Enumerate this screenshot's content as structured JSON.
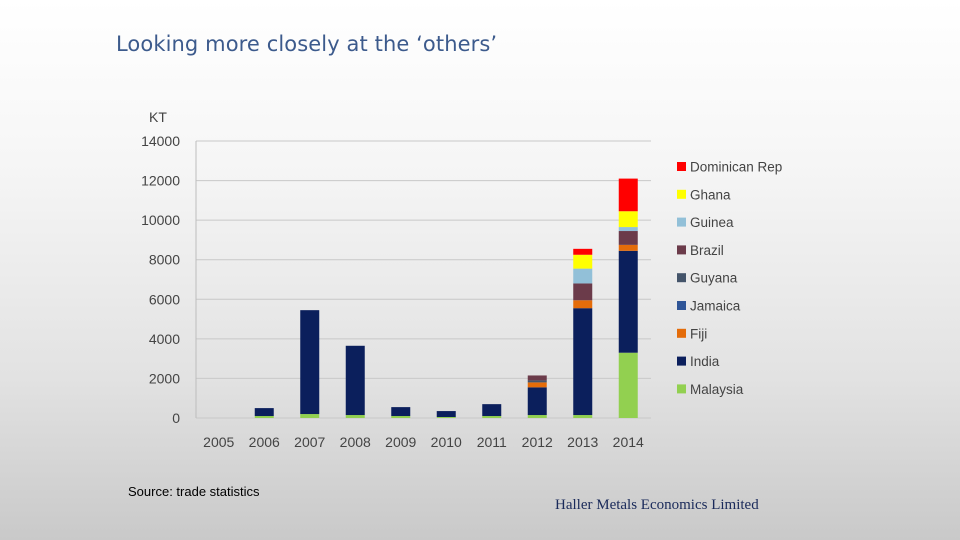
{
  "slide": {
    "title": "Looking more closely at the ‘others’",
    "source": "Source: trade statistics",
    "company": "Haller Metals Economics Limited"
  },
  "chart_data": {
    "type": "bar",
    "stacked": true,
    "ylabel": "KT",
    "ylim": [
      0,
      14000
    ],
    "ytick_step": 2000,
    "grid": true,
    "legend_position": "right",
    "categories": [
      "2005",
      "2006",
      "2007",
      "2008",
      "2009",
      "2010",
      "2011",
      "2012",
      "2013",
      "2014"
    ],
    "series": [
      {
        "name": "Malaysia",
        "color": "#92d050",
        "values": [
          0,
          100,
          200,
          150,
          100,
          50,
          100,
          150,
          150,
          3300
        ]
      },
      {
        "name": "India",
        "color": "#0b1f5c",
        "values": [
          0,
          400,
          5250,
          3500,
          450,
          300,
          600,
          1400,
          5400,
          5150
        ]
      },
      {
        "name": "Fiji",
        "color": "#e46c0a",
        "values": [
          0,
          0,
          0,
          0,
          0,
          0,
          0,
          250,
          400,
          300
        ]
      },
      {
        "name": "Jamaica",
        "color": "#2f5597",
        "values": [
          0,
          0,
          0,
          0,
          0,
          0,
          0,
          0,
          0,
          0
        ]
      },
      {
        "name": "Guyana",
        "color": "#44546a",
        "values": [
          0,
          0,
          0,
          0,
          0,
          0,
          0,
          100,
          0,
          0
        ]
      },
      {
        "name": "Brazil",
        "color": "#6b3b4a",
        "values": [
          0,
          0,
          0,
          0,
          0,
          0,
          0,
          250,
          850,
          700
        ]
      },
      {
        "name": "Guinea",
        "color": "#92c0d8",
        "values": [
          0,
          0,
          0,
          0,
          0,
          0,
          0,
          0,
          750,
          200
        ]
      },
      {
        "name": "Ghana",
        "color": "#ffff00",
        "values": [
          0,
          0,
          0,
          0,
          0,
          0,
          0,
          0,
          700,
          800
        ]
      },
      {
        "name": "Dominican Rep",
        "color": "#ff0000",
        "values": [
          0,
          0,
          0,
          0,
          0,
          0,
          0,
          0,
          300,
          1650
        ]
      }
    ],
    "legend_order": [
      "Dominican Rep",
      "Ghana",
      "Guinea",
      "Brazil",
      "Guyana",
      "Jamaica",
      "Fiji",
      "India",
      "Malaysia"
    ]
  }
}
